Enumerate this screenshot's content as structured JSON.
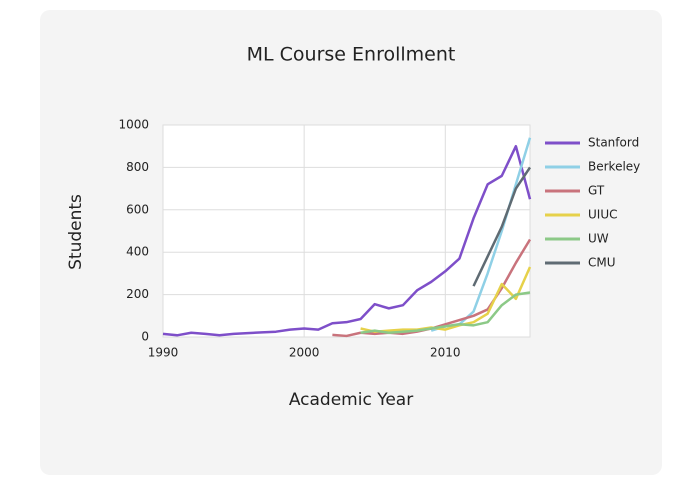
{
  "chart_data": {
    "type": "line",
    "title": "ML Course Enrollment",
    "x_label": "Academic Year",
    "y_label": "Students",
    "x": [
      1990,
      1991,
      1992,
      1993,
      1994,
      1995,
      1996,
      1997,
      1998,
      1999,
      2000,
      2001,
      2002,
      2003,
      2004,
      2005,
      2006,
      2007,
      2008,
      2009,
      2010,
      2011,
      2012,
      2013,
      2014,
      2015,
      2016
    ],
    "xlim": [
      1990,
      2016
    ],
    "xticks": [
      1990,
      2000,
      2010
    ],
    "ylim": [
      0,
      1000
    ],
    "yticks": [
      0,
      200,
      400,
      600,
      800,
      1000
    ],
    "grid": true,
    "legend": "right",
    "series": [
      {
        "name": "Stanford",
        "color": "#7e4fc9",
        "values": [
          15,
          8,
          20,
          15,
          8,
          15,
          18,
          22,
          25,
          35,
          40,
          35,
          65,
          70,
          85,
          155,
          135,
          150,
          220,
          260,
          310,
          370,
          560,
          720,
          760,
          900,
          650
        ]
      },
      {
        "name": "Berkeley",
        "color": "#8fd0e6",
        "values": [
          null,
          null,
          null,
          null,
          null,
          null,
          null,
          null,
          null,
          null,
          null,
          null,
          null,
          null,
          null,
          null,
          null,
          null,
          null,
          30,
          50,
          60,
          120,
          300,
          500,
          720,
          940
        ]
      },
      {
        "name": "GT",
        "color": "#c9737c",
        "values": [
          null,
          null,
          null,
          null,
          null,
          null,
          null,
          null,
          null,
          null,
          null,
          null,
          10,
          5,
          20,
          15,
          20,
          15,
          25,
          40,
          60,
          80,
          100,
          130,
          230,
          350,
          460
        ]
      },
      {
        "name": "UIUC",
        "color": "#e6d14a",
        "values": [
          null,
          null,
          null,
          null,
          null,
          null,
          null,
          null,
          null,
          null,
          null,
          null,
          null,
          null,
          40,
          25,
          30,
          35,
          35,
          45,
          35,
          55,
          70,
          110,
          250,
          180,
          330
        ]
      },
      {
        "name": "UW",
        "color": "#8cc987",
        "values": [
          null,
          null,
          null,
          null,
          null,
          null,
          null,
          null,
          null,
          null,
          null,
          null,
          null,
          null,
          20,
          30,
          20,
          25,
          30,
          40,
          50,
          60,
          55,
          70,
          150,
          200,
          210
        ]
      },
      {
        "name": "CMU",
        "color": "#5f6b73",
        "values": [
          null,
          null,
          null,
          null,
          null,
          null,
          null,
          null,
          null,
          null,
          null,
          null,
          null,
          null,
          null,
          null,
          null,
          null,
          null,
          null,
          null,
          null,
          240,
          380,
          520,
          700,
          800
        ]
      }
    ]
  }
}
